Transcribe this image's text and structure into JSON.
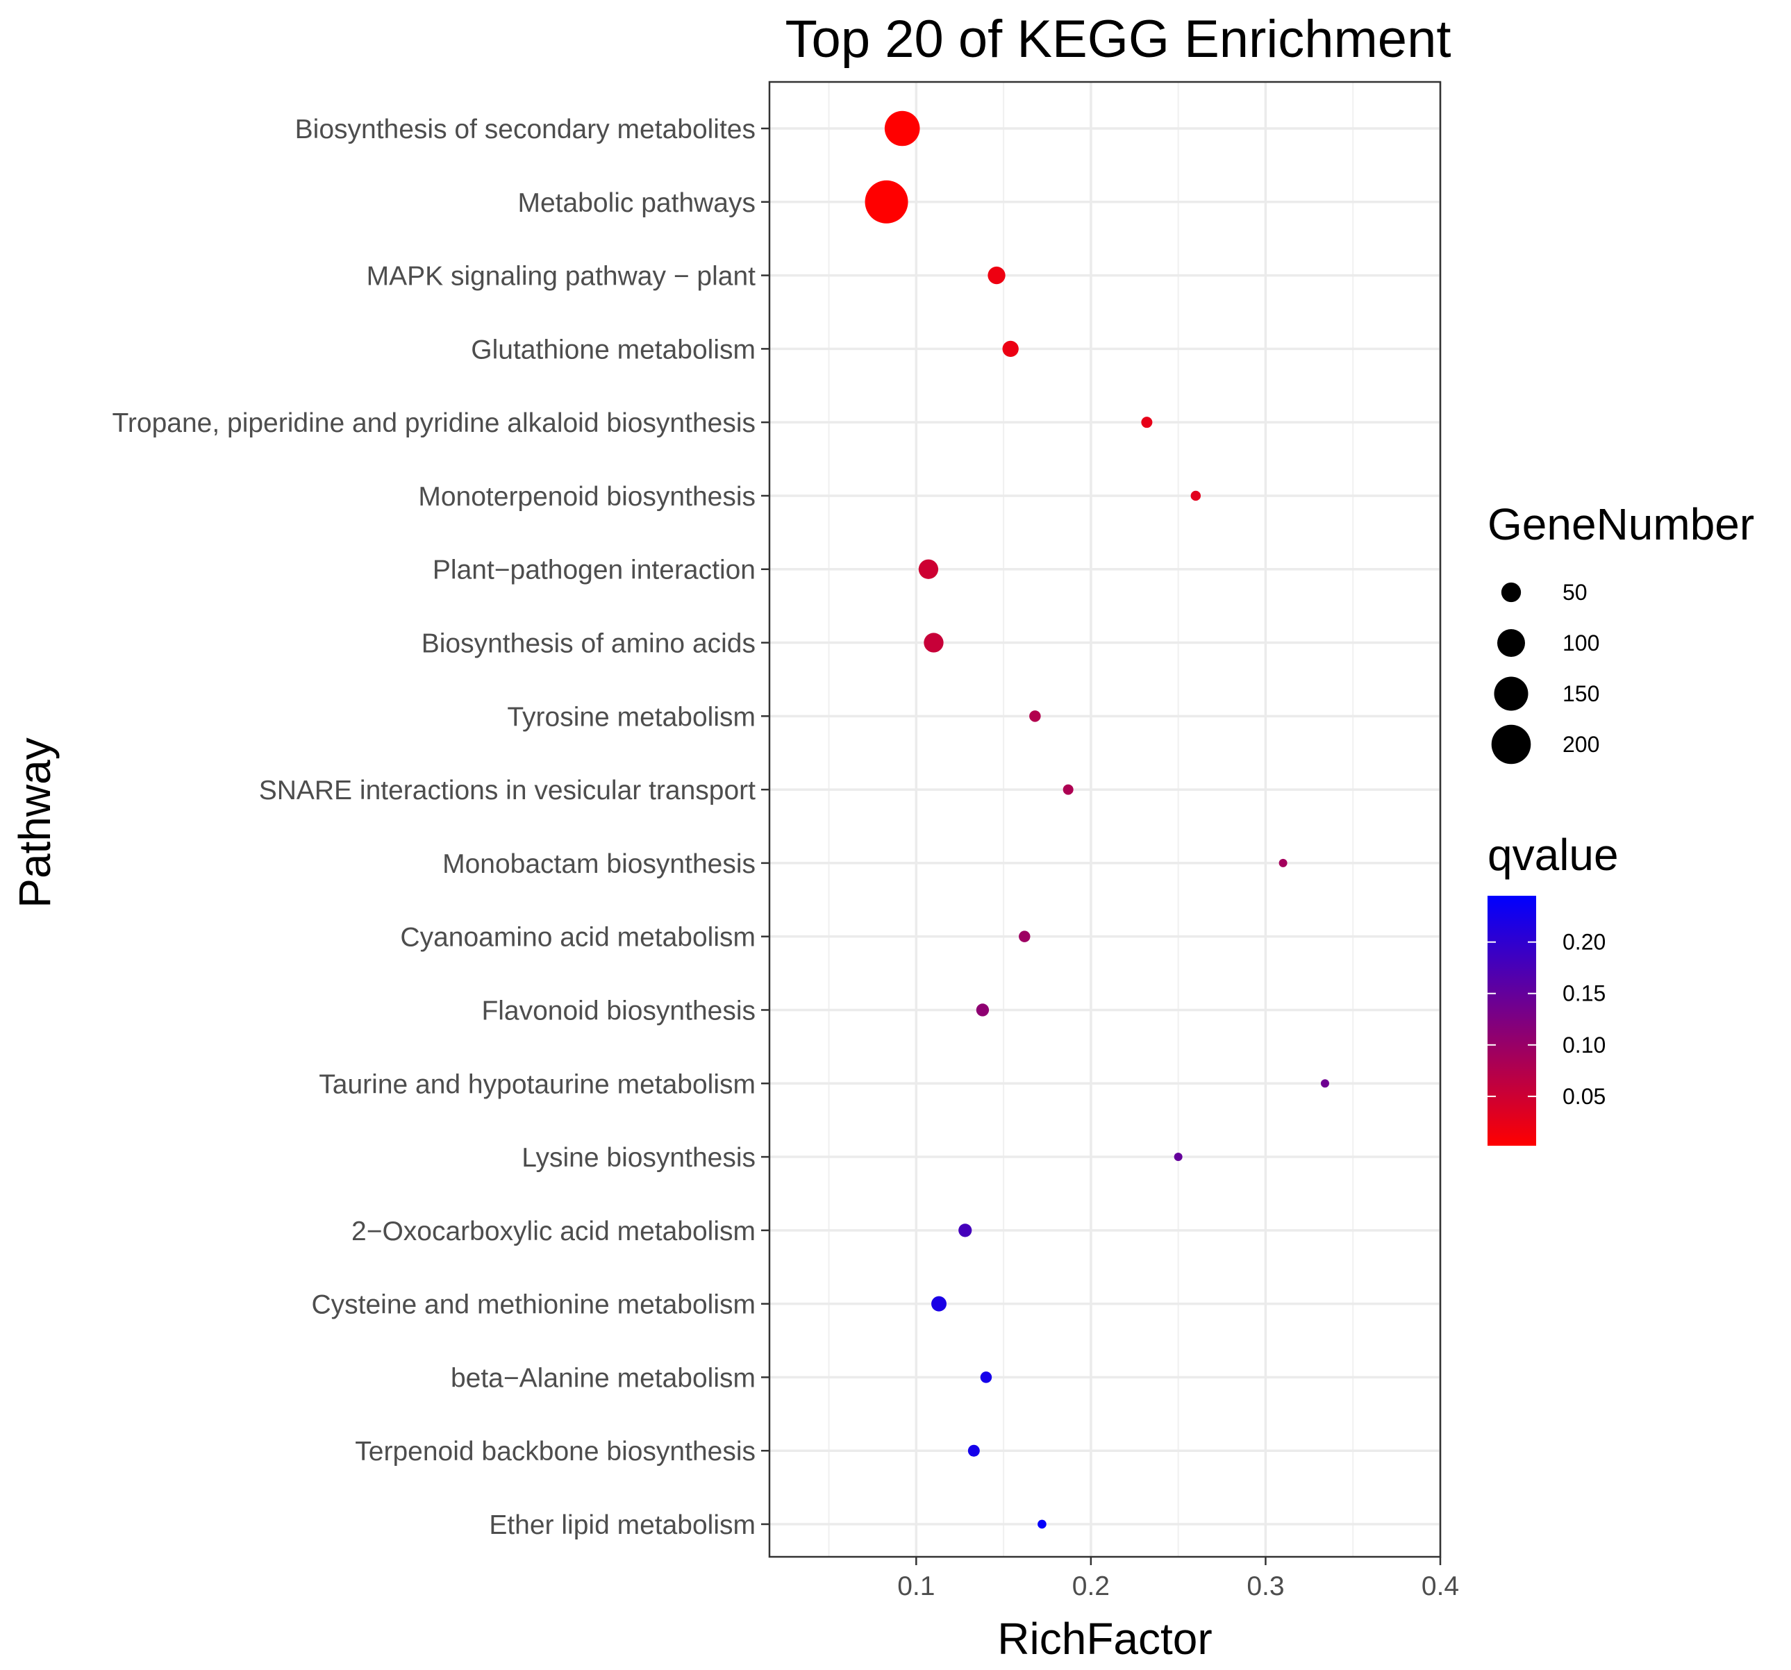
{
  "chart_data": {
    "type": "scatter",
    "title": "Top 20 of KEGG Enrichment",
    "xlabel": "RichFactor",
    "ylabel": "Pathway",
    "xlim": [
      0.016,
      0.4
    ],
    "x_ticks": [
      0.1,
      0.2,
      0.3,
      0.4
    ],
    "x_tick_labels": [
      "0.1",
      "0.2",
      "0.3",
      "0.4"
    ],
    "grid": true,
    "categories": [
      "Biosynthesis of secondary metabolites",
      "Metabolic pathways",
      "MAPK signaling pathway − plant",
      "Glutathione metabolism",
      "Tropane, piperidine and pyridine alkaloid biosynthesis",
      "Monoterpenoid biosynthesis",
      "Plant−pathogen interaction",
      "Biosynthesis of amino acids",
      "Tyrosine metabolism",
      "SNARE interactions in vesicular transport",
      "Monobactam biosynthesis",
      "Cyanoamino acid metabolism",
      "Flavonoid biosynthesis",
      "Taurine and hypotaurine metabolism",
      "Lysine biosynthesis",
      "2−Oxocarboxylic acid metabolism",
      "Cysteine and methionine metabolism",
      "beta−Alanine metabolism",
      "Terpenoid backbone biosynthesis",
      "Ether lipid metabolism"
    ],
    "points": [
      {
        "pathway": "Biosynthesis of secondary metabolites",
        "rich_factor": 0.092,
        "gene_number": 160,
        "qvalue": 0.001
      },
      {
        "pathway": "Metabolic pathways",
        "rich_factor": 0.083,
        "gene_number": 240,
        "qvalue": 0.001
      },
      {
        "pathway": "MAPK signaling pathway − plant",
        "rich_factor": 0.146,
        "gene_number": 40,
        "qvalue": 0.018
      },
      {
        "pathway": "Glutathione metabolism",
        "rich_factor": 0.154,
        "gene_number": 34,
        "qvalue": 0.02
      },
      {
        "pathway": "Tropane, piperidine and pyridine alkaloid biosynthesis",
        "rich_factor": 0.232,
        "gene_number": 16,
        "qvalue": 0.025
      },
      {
        "pathway": "Monoterpenoid biosynthesis",
        "rich_factor": 0.26,
        "gene_number": 13,
        "qvalue": 0.03
      },
      {
        "pathway": "Plant−pathogen interaction",
        "rich_factor": 0.107,
        "gene_number": 50,
        "qvalue": 0.05
      },
      {
        "pathway": "Biosynthesis of amino acids",
        "rich_factor": 0.11,
        "gene_number": 50,
        "qvalue": 0.055
      },
      {
        "pathway": "Tyrosine metabolism",
        "rich_factor": 0.168,
        "gene_number": 17,
        "qvalue": 0.075
      },
      {
        "pathway": "SNARE interactions in vesicular transport",
        "rich_factor": 0.187,
        "gene_number": 14,
        "qvalue": 0.08
      },
      {
        "pathway": "Monobactam biosynthesis",
        "rich_factor": 0.31,
        "gene_number": 5,
        "qvalue": 0.09
      },
      {
        "pathway": "Cyanoamino acid metabolism",
        "rich_factor": 0.162,
        "gene_number": 17,
        "qvalue": 0.095
      },
      {
        "pathway": "Flavonoid biosynthesis",
        "rich_factor": 0.138,
        "gene_number": 21,
        "qvalue": 0.11
      },
      {
        "pathway": "Taurine and hypotaurine metabolism",
        "rich_factor": 0.334,
        "gene_number": 3,
        "qvalue": 0.14
      },
      {
        "pathway": "Lysine biosynthesis",
        "rich_factor": 0.25,
        "gene_number": 7,
        "qvalue": 0.15
      },
      {
        "pathway": "2−Oxocarboxylic acid metabolism",
        "rich_factor": 0.128,
        "gene_number": 23,
        "qvalue": 0.18
      },
      {
        "pathway": "Cysteine and methionine metabolism",
        "rich_factor": 0.113,
        "gene_number": 30,
        "qvalue": 0.22
      },
      {
        "pathway": "beta−Alanine metabolism",
        "rich_factor": 0.14,
        "gene_number": 17,
        "qvalue": 0.225
      },
      {
        "pathway": "Terpenoid backbone biosynthesis",
        "rich_factor": 0.133,
        "gene_number": 18,
        "qvalue": 0.225
      },
      {
        "pathway": "Ether lipid metabolism",
        "rich_factor": 0.172,
        "gene_number": 10,
        "qvalue": 0.24
      }
    ],
    "size_legend": {
      "title": "GeneNumber",
      "values": [
        50,
        100,
        150,
        200
      ],
      "labels": [
        "50",
        "100",
        "150",
        "200"
      ]
    },
    "color_legend": {
      "title": "qvalue",
      "low_color": "#ff0000",
      "high_color": "#0000ff",
      "range": [
        0.002,
        0.245
      ],
      "ticks": [
        0.05,
        0.1,
        0.15,
        0.2
      ],
      "tick_labels": [
        "0.05",
        "0.10",
        "0.15",
        "0.20"
      ]
    },
    "legend_placement": "right"
  }
}
